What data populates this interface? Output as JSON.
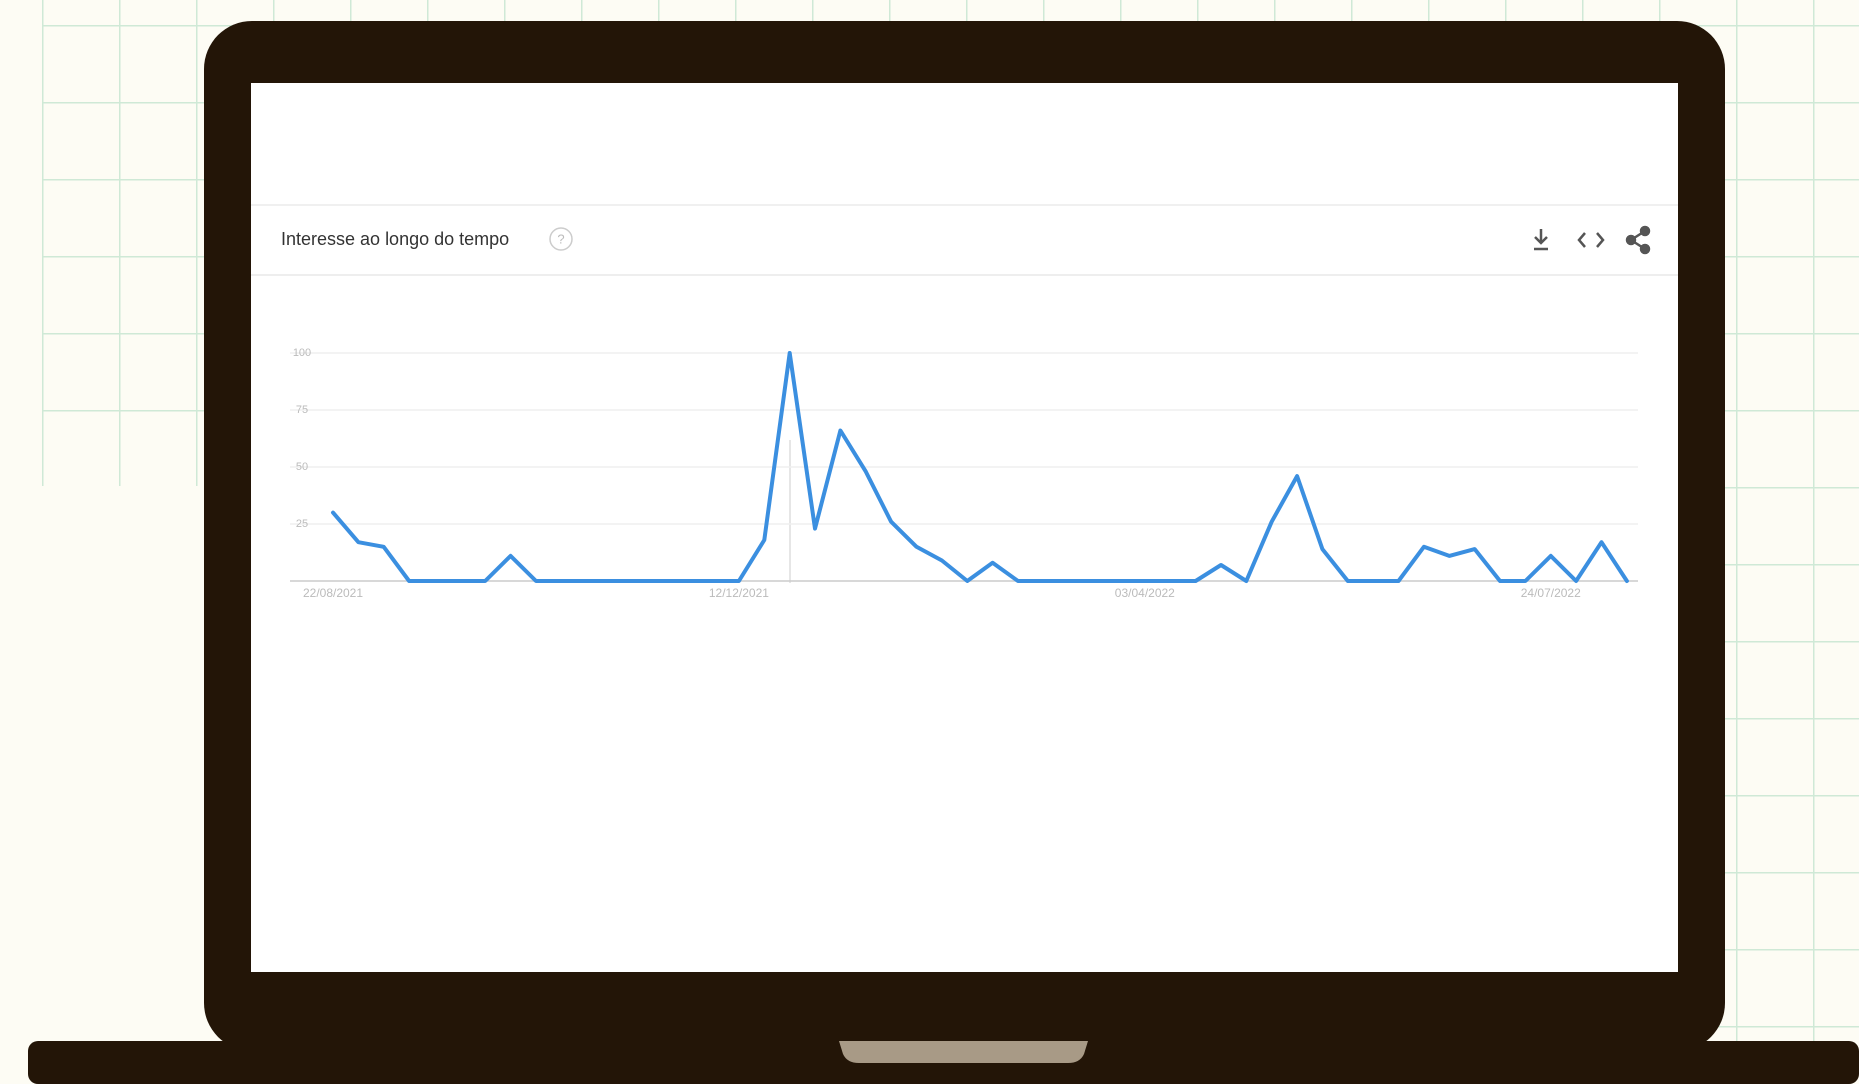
{
  "chart_data": {
    "type": "line",
    "title": "Interesse ao longo do tempo",
    "categories": [
      "22/08/2021",
      null,
      null,
      null,
      null,
      null,
      null,
      null,
      null,
      null,
      null,
      null,
      null,
      null,
      null,
      null,
      "12/12/2021",
      null,
      null,
      null,
      null,
      null,
      null,
      null,
      null,
      null,
      null,
      null,
      null,
      null,
      null,
      null,
      "03/04/2022",
      null,
      null,
      null,
      null,
      null,
      null,
      null,
      null,
      null,
      null,
      null,
      null,
      null,
      null,
      null,
      "24/07/2022",
      null,
      null,
      null
    ],
    "values": [
      30,
      17,
      15,
      0,
      0,
      0,
      0,
      11,
      0,
      0,
      0,
      0,
      0,
      0,
      0,
      0,
      0,
      18,
      100,
      23,
      66,
      48,
      26,
      15,
      9,
      0,
      8,
      0,
      0,
      0,
      0,
      0,
      0,
      0,
      0,
      7,
      0,
      26,
      46,
      14,
      0,
      0,
      0,
      15,
      11,
      14,
      0,
      0,
      11,
      0,
      17,
      0
    ],
    "color": "#3b8fe0",
    "ylim": [
      0,
      100
    ],
    "yticks": [
      25,
      50,
      75,
      100
    ],
    "grid": true
  }
}
